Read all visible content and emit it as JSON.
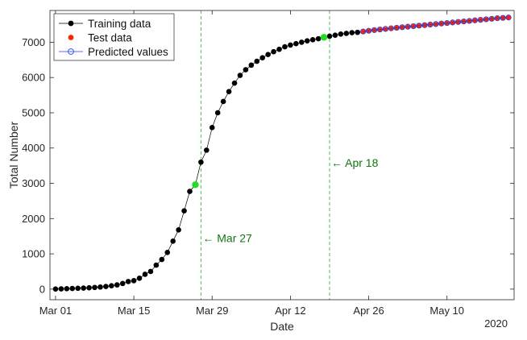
{
  "chart_data": {
    "type": "line",
    "title": "",
    "xlabel": "Date",
    "ylabel": "Total Number",
    "year_label": "2020",
    "x_start": "2020-03-01",
    "x_end": "2020-05-21",
    "xlim": [
      "2020-02-29",
      "2020-05-22"
    ],
    "ylim": [
      -300,
      7900
    ],
    "xticks": [
      {
        "date": "2020-03-01",
        "label": "Mar 01"
      },
      {
        "date": "2020-03-15",
        "label": "Mar 15"
      },
      {
        "date": "2020-03-29",
        "label": "Mar 29"
      },
      {
        "date": "2020-04-12",
        "label": "Apr 12"
      },
      {
        "date": "2020-04-26",
        "label": "Apr 26"
      },
      {
        "date": "2020-05-10",
        "label": "May 10"
      }
    ],
    "yticks": [
      0,
      1000,
      2000,
      3000,
      4000,
      5000,
      6000,
      7000
    ],
    "legend": {
      "position": "top-left",
      "entries": [
        {
          "label": "Training data",
          "color": "#000000",
          "marker": "filled-circle"
        },
        {
          "label": "Test data",
          "color": "#ff2200",
          "marker": "filled-circle"
        },
        {
          "label": "Predicted values",
          "color": "#1f3fdc",
          "marker": "open-circle"
        }
      ]
    },
    "training": [
      {
        "date": "2020-03-01",
        "value": 5
      },
      {
        "date": "2020-03-02",
        "value": 8
      },
      {
        "date": "2020-03-03",
        "value": 12
      },
      {
        "date": "2020-03-04",
        "value": 18
      },
      {
        "date": "2020-03-05",
        "value": 24
      },
      {
        "date": "2020-03-06",
        "value": 30
      },
      {
        "date": "2020-03-07",
        "value": 38
      },
      {
        "date": "2020-03-08",
        "value": 48
      },
      {
        "date": "2020-03-09",
        "value": 60
      },
      {
        "date": "2020-03-10",
        "value": 75
      },
      {
        "date": "2020-03-11",
        "value": 95
      },
      {
        "date": "2020-03-12",
        "value": 120
      },
      {
        "date": "2020-03-13",
        "value": 160
      },
      {
        "date": "2020-03-14",
        "value": 215
      },
      {
        "date": "2020-03-15",
        "value": 240
      },
      {
        "date": "2020-03-16",
        "value": 310
      },
      {
        "date": "2020-03-17",
        "value": 420
      },
      {
        "date": "2020-03-18",
        "value": 500
      },
      {
        "date": "2020-03-19",
        "value": 680
      },
      {
        "date": "2020-03-20",
        "value": 840
      },
      {
        "date": "2020-03-21",
        "value": 1040
      },
      {
        "date": "2020-03-22",
        "value": 1360
      },
      {
        "date": "2020-03-23",
        "value": 1680
      },
      {
        "date": "2020-03-24",
        "value": 2220
      },
      {
        "date": "2020-03-25",
        "value": 2770
      },
      {
        "date": "2020-03-26",
        "value": 2960
      },
      {
        "date": "2020-03-27",
        "value": 3600
      },
      {
        "date": "2020-03-28",
        "value": 3940
      },
      {
        "date": "2020-03-29",
        "value": 4580
      },
      {
        "date": "2020-03-30",
        "value": 5000
      },
      {
        "date": "2020-03-31",
        "value": 5320
      },
      {
        "date": "2020-04-01",
        "value": 5600
      },
      {
        "date": "2020-04-02",
        "value": 5840
      },
      {
        "date": "2020-04-03",
        "value": 6060
      },
      {
        "date": "2020-04-04",
        "value": 6220
      },
      {
        "date": "2020-04-05",
        "value": 6350
      },
      {
        "date": "2020-04-06",
        "value": 6460
      },
      {
        "date": "2020-04-07",
        "value": 6560
      },
      {
        "date": "2020-04-08",
        "value": 6650
      },
      {
        "date": "2020-04-09",
        "value": 6730
      },
      {
        "date": "2020-04-10",
        "value": 6800
      },
      {
        "date": "2020-04-11",
        "value": 6870
      },
      {
        "date": "2020-04-12",
        "value": 6920
      },
      {
        "date": "2020-04-13",
        "value": 6960
      },
      {
        "date": "2020-04-14",
        "value": 7000
      },
      {
        "date": "2020-04-15",
        "value": 7040
      },
      {
        "date": "2020-04-16",
        "value": 7070
      },
      {
        "date": "2020-04-17",
        "value": 7100
      },
      {
        "date": "2020-04-18",
        "value": 7140
      },
      {
        "date": "2020-04-19",
        "value": 7170
      },
      {
        "date": "2020-04-20",
        "value": 7200
      },
      {
        "date": "2020-04-21",
        "value": 7230
      },
      {
        "date": "2020-04-22",
        "value": 7250
      },
      {
        "date": "2020-04-23",
        "value": 7270
      },
      {
        "date": "2020-04-24",
        "value": 7280
      }
    ],
    "test": [
      {
        "date": "2020-04-25",
        "value": 7300
      },
      {
        "date": "2020-04-26",
        "value": 7320
      },
      {
        "date": "2020-04-27",
        "value": 7340
      },
      {
        "date": "2020-04-28",
        "value": 7355
      },
      {
        "date": "2020-04-29",
        "value": 7370
      },
      {
        "date": "2020-04-30",
        "value": 7390
      },
      {
        "date": "2020-05-01",
        "value": 7405
      },
      {
        "date": "2020-05-02",
        "value": 7420
      },
      {
        "date": "2020-05-03",
        "value": 7435
      },
      {
        "date": "2020-05-04",
        "value": 7450
      },
      {
        "date": "2020-05-05",
        "value": 7465
      },
      {
        "date": "2020-05-06",
        "value": 7480
      },
      {
        "date": "2020-05-07",
        "value": 7495
      },
      {
        "date": "2020-05-08",
        "value": 7510
      },
      {
        "date": "2020-05-09",
        "value": 7525
      },
      {
        "date": "2020-05-10",
        "value": 7540
      },
      {
        "date": "2020-05-11",
        "value": 7555
      },
      {
        "date": "2020-05-12",
        "value": 7570
      },
      {
        "date": "2020-05-13",
        "value": 7585
      },
      {
        "date": "2020-05-14",
        "value": 7600
      },
      {
        "date": "2020-05-15",
        "value": 7615
      },
      {
        "date": "2020-05-16",
        "value": 7630
      },
      {
        "date": "2020-05-17",
        "value": 7645
      },
      {
        "date": "2020-05-18",
        "value": 7660
      },
      {
        "date": "2020-05-19",
        "value": 7675
      },
      {
        "date": "2020-05-20",
        "value": 7690
      },
      {
        "date": "2020-05-21",
        "value": 7700
      }
    ],
    "predicted": [
      {
        "date": "2020-04-25",
        "value": 7305
      },
      {
        "date": "2020-04-26",
        "value": 7325
      },
      {
        "date": "2020-04-27",
        "value": 7345
      },
      {
        "date": "2020-04-28",
        "value": 7362
      },
      {
        "date": "2020-04-29",
        "value": 7378
      },
      {
        "date": "2020-04-30",
        "value": 7395
      },
      {
        "date": "2020-05-01",
        "value": 7410
      },
      {
        "date": "2020-05-02",
        "value": 7425
      },
      {
        "date": "2020-05-03",
        "value": 7440
      },
      {
        "date": "2020-05-04",
        "value": 7455
      },
      {
        "date": "2020-05-05",
        "value": 7470
      },
      {
        "date": "2020-05-06",
        "value": 7485
      },
      {
        "date": "2020-05-07",
        "value": 7500
      },
      {
        "date": "2020-05-08",
        "value": 7515
      },
      {
        "date": "2020-05-09",
        "value": 7530
      },
      {
        "date": "2020-05-10",
        "value": 7545
      },
      {
        "date": "2020-05-11",
        "value": 7560
      },
      {
        "date": "2020-05-12",
        "value": 7575
      },
      {
        "date": "2020-05-13",
        "value": 7590
      },
      {
        "date": "2020-05-14",
        "value": 7605
      },
      {
        "date": "2020-05-15",
        "value": 7620
      },
      {
        "date": "2020-05-16",
        "value": 7635
      },
      {
        "date": "2020-05-17",
        "value": 7650
      },
      {
        "date": "2020-05-18",
        "value": 7665
      },
      {
        "date": "2020-05-19",
        "value": 7680
      },
      {
        "date": "2020-05-20",
        "value": 7690
      },
      {
        "date": "2020-05-21",
        "value": 7700
      }
    ],
    "highlight_points": [
      {
        "date": "2020-03-26",
        "value": 2960,
        "color": "#22dd22"
      },
      {
        "date": "2020-04-18",
        "value": 7140,
        "color": "#22dd22"
      }
    ],
    "annotations": [
      {
        "date": "2020-03-27",
        "text": "← Mar 27",
        "color": "#117711",
        "line_style": "dashed",
        "label_value": 1450
      },
      {
        "date": "2020-04-19",
        "text": "← Apr 18",
        "color": "#117711",
        "line_style": "dashed",
        "label_value": 3580
      }
    ]
  }
}
